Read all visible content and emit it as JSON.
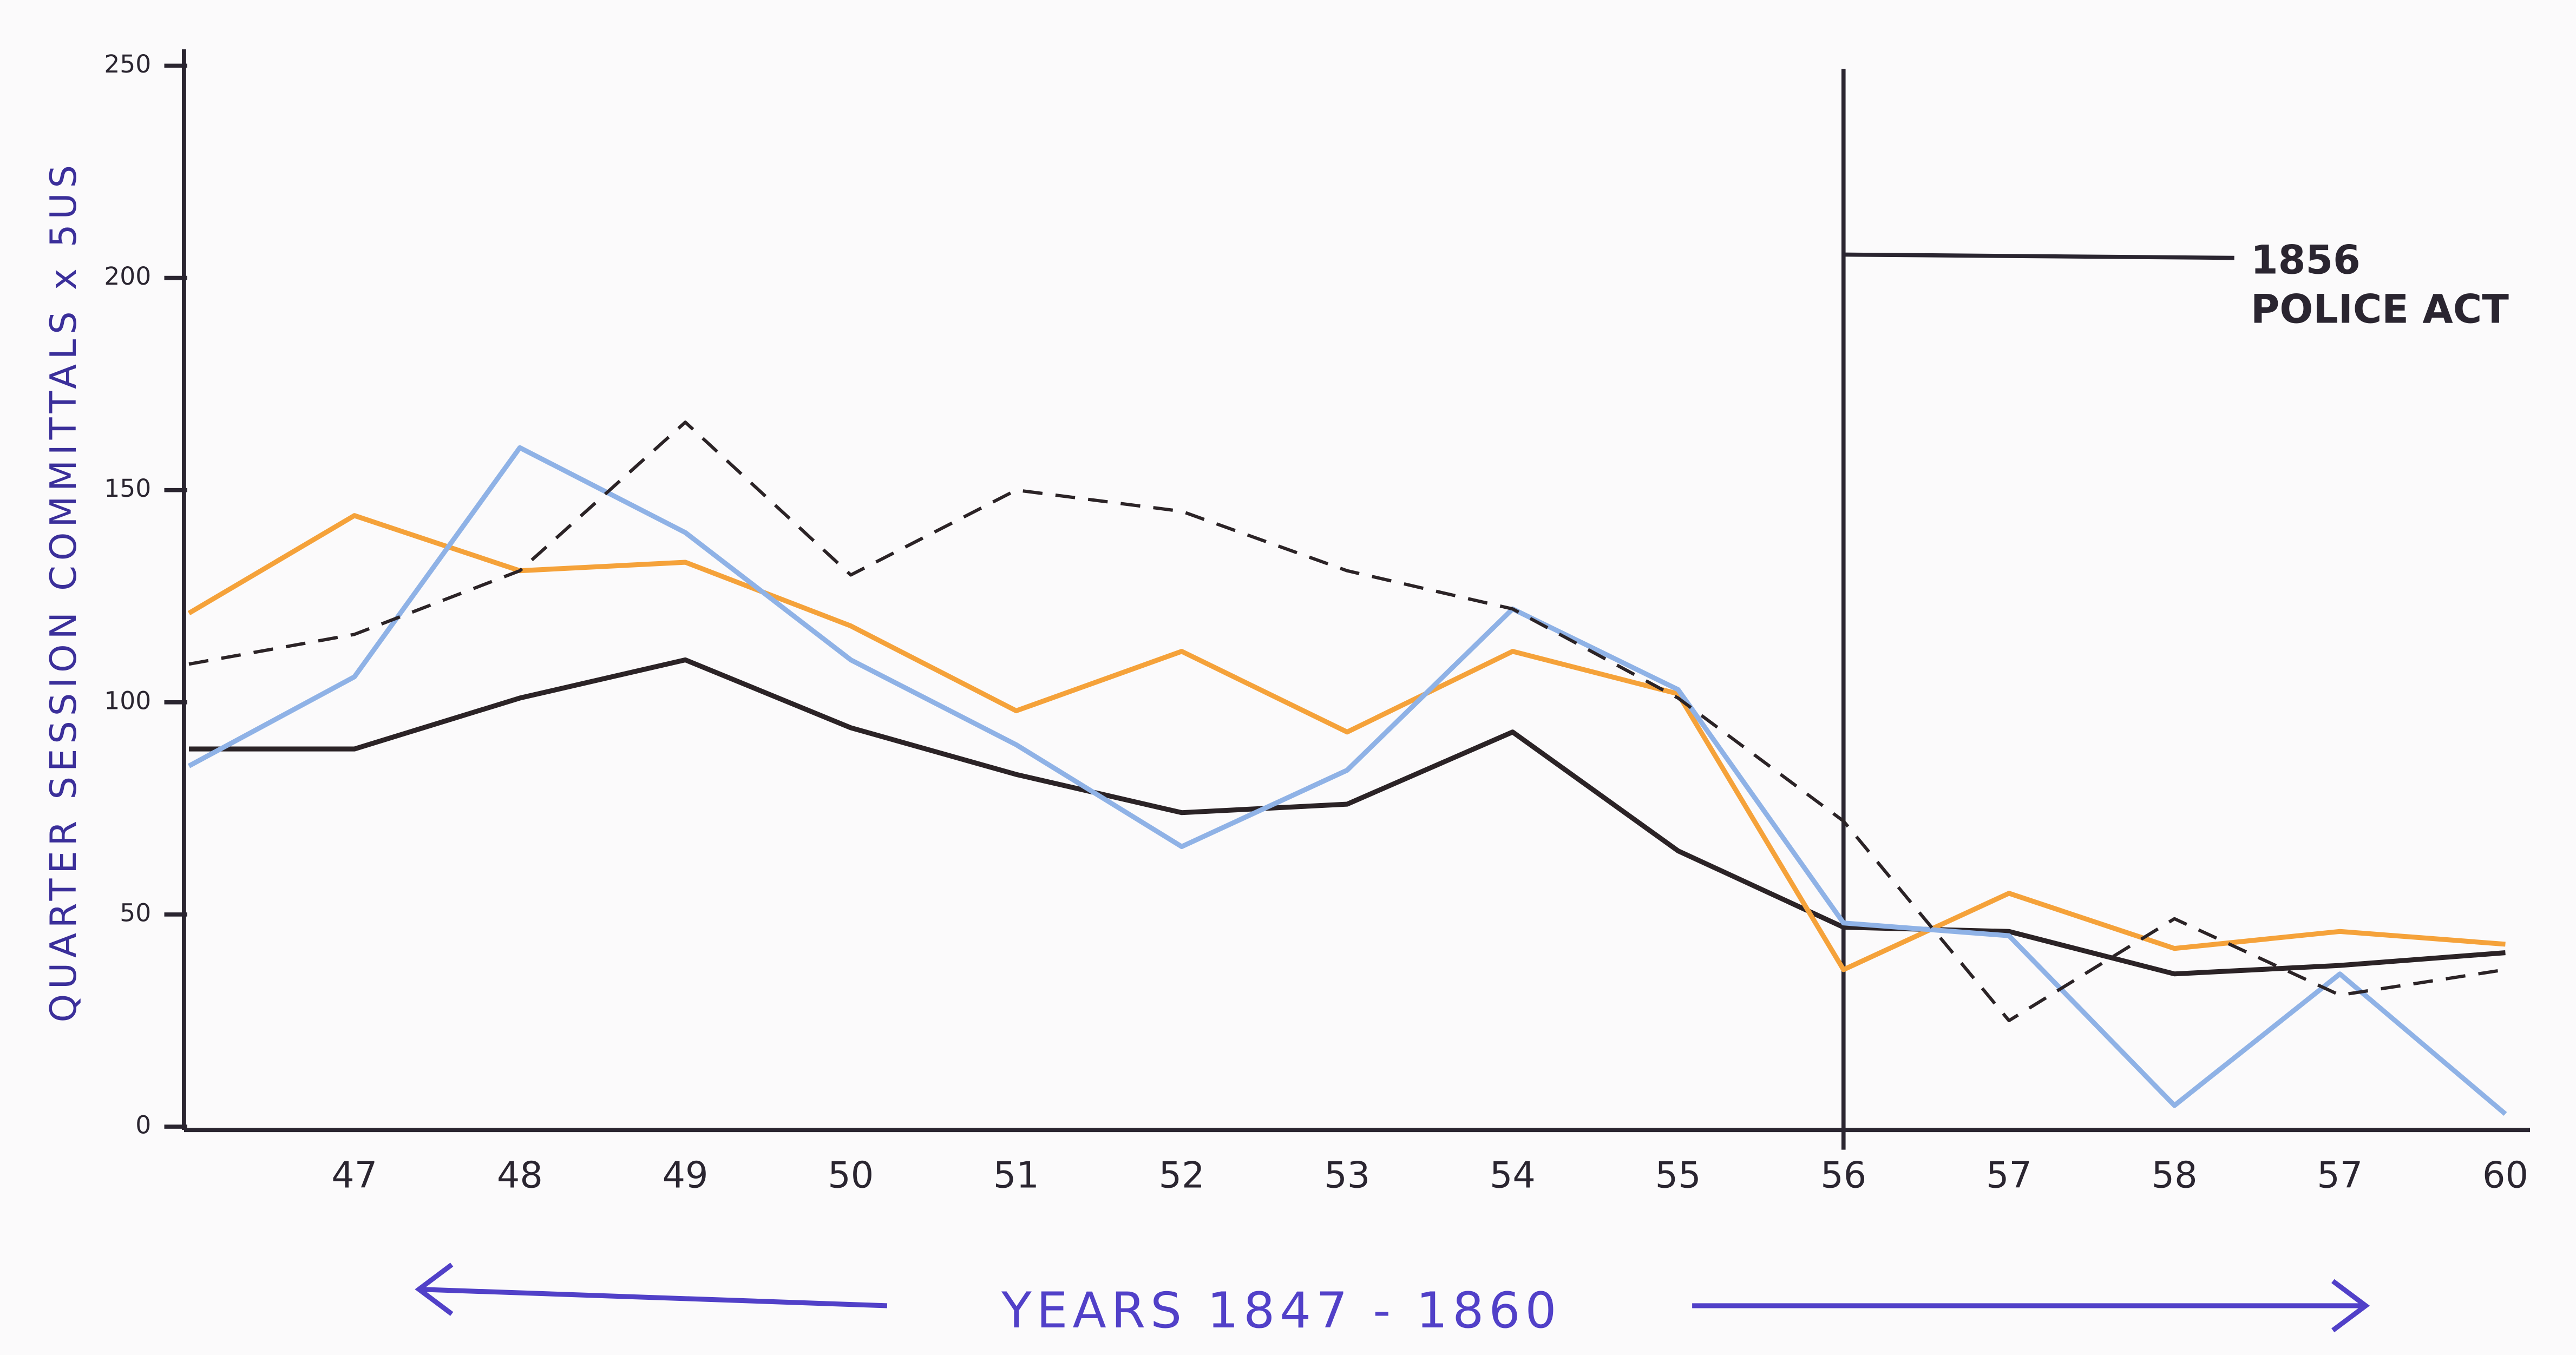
{
  "chart_data": {
    "type": "line",
    "y_label": "QUARTER SESSION COMMITTALS x 5US",
    "x_label": "YEARS 1847 - 1860",
    "annotation": [
      "1856",
      "POLICE ACT"
    ],
    "categories": [
      null,
      "47",
      "48",
      "49",
      "50",
      "51",
      "52",
      "53",
      "54",
      "55",
      "56",
      "57",
      "58",
      "57",
      "60"
    ],
    "series": [
      {
        "color": "#2b2326",
        "style": "solid",
        "values": [
          89,
          89,
          101,
          110,
          94,
          83,
          74,
          76,
          93,
          65,
          47,
          46,
          36,
          38,
          41
        ]
      },
      {
        "color": "#f5a23a",
        "style": "solid",
        "values": [
          121,
          144,
          131,
          133,
          118,
          98,
          112,
          93,
          112,
          102,
          37,
          55,
          42,
          46,
          43
        ]
      },
      {
        "color": "#8fb2e6",
        "style": "solid",
        "values": [
          85,
          106,
          160,
          140,
          110,
          90,
          66,
          84,
          122,
          103,
          48,
          45,
          5,
          36,
          3
        ]
      },
      {
        "color": "#2b2326",
        "style": "dashed",
        "values": [
          109,
          116,
          131,
          166,
          130,
          150,
          145,
          131,
          122,
          101,
          72,
          25,
          49,
          31,
          37
        ]
      }
    ],
    "ylim": [
      0,
      250
    ],
    "yticks": [
      0,
      50,
      100,
      150,
      200,
      250
    ]
  }
}
